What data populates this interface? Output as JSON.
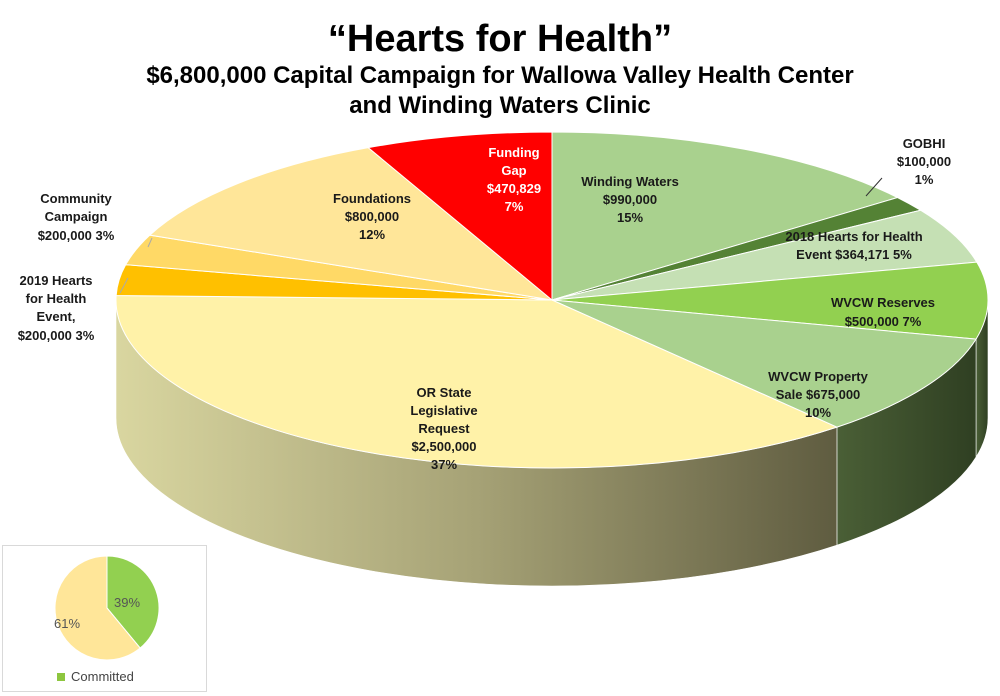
{
  "header": {
    "title": "“Hearts for Health”",
    "subtitle_line1": "$6,800,000 Capital Campaign for Wallowa Valley Health Center",
    "subtitle_line2": "and Winding Waters Clinic"
  },
  "chart_data": [
    {
      "type": "pie",
      "title": "“Hearts for Health”",
      "total": 6800000,
      "slices": [
        {
          "label": "Winding Waters",
          "value": 990000,
          "value_text": "$990,000",
          "percent_text": "15%",
          "color": "#a9d18e"
        },
        {
          "label": "GOBHI",
          "value": 100000,
          "value_text": "$100,000",
          "percent_text": "1%",
          "color": "#548235"
        },
        {
          "label": "2018 Hearts for Health Event",
          "value": 364171,
          "value_text": "$364,171",
          "percent_text": "5%",
          "color": "#c5e0b4"
        },
        {
          "label": "WVCW Reserves",
          "value": 500000,
          "value_text": "$500,000",
          "percent_text": "7%",
          "color": "#92d050"
        },
        {
          "label": "WVCW Property Sale",
          "value": 675000,
          "value_text": "$675,000",
          "percent_text": "10%",
          "color": "#a9d18e"
        },
        {
          "label": "OR State Legislative Request",
          "value": 2500000,
          "value_text": "$2,500,000",
          "percent_text": "37%",
          "color": "#fff2a8"
        },
        {
          "label": "2019 Hearts for Health Event,",
          "value": 200000,
          "value_text": "$200,000",
          "percent_text": "3%",
          "color": "#ffc000"
        },
        {
          "label": "Community Campaign",
          "value": 200000,
          "value_text": "$200,000",
          "percent_text": "3%",
          "color": "#ffd966"
        },
        {
          "label": "Foundations",
          "value": 800000,
          "value_text": "$800,000",
          "percent_text": "12%",
          "color": "#ffe699"
        },
        {
          "label": "Funding Gap",
          "value": 470829,
          "value_text": "$470,829",
          "percent_text": "7%",
          "color": "#ff0000"
        }
      ]
    },
    {
      "type": "pie",
      "slices": [
        {
          "label": "Committed",
          "value": 39,
          "percent_text": "39%",
          "color": "#92d050"
        },
        {
          "label": "",
          "value": 61,
          "percent_text": "61%",
          "color": "#ffe699"
        }
      ],
      "legend": {
        "position": "bottom",
        "entries": [
          "Committed"
        ]
      }
    }
  ],
  "labels": {
    "winding": [
      "Winding Waters",
      "$990,000",
      "15%"
    ],
    "gobhi": [
      "GOBHI",
      "$100,000",
      "1%"
    ],
    "hearts2018": [
      "2018 Hearts for Health",
      "Event $364,171  5%"
    ],
    "reserves": [
      "WVCW Reserves",
      "$500,000  7%"
    ],
    "property": [
      "WVCW Property",
      "Sale  $675,000",
      "10%"
    ],
    "orstate": [
      "OR State",
      "Legislative",
      "Request",
      "$2,500,000",
      "37%"
    ],
    "hearts2019": [
      "2019 Hearts",
      "for Health",
      "Event,",
      "$200,000  3%"
    ],
    "community": [
      "Community",
      "Campaign",
      "$200,000  3%"
    ],
    "foundations": [
      "Foundations",
      "$800,000",
      "12%"
    ],
    "gap": [
      "Funding",
      "Gap",
      "$470,829",
      "7%"
    ]
  },
  "inset": {
    "committed_pct": "39%",
    "remaining_pct": "61%",
    "legend_label": "Committed"
  }
}
